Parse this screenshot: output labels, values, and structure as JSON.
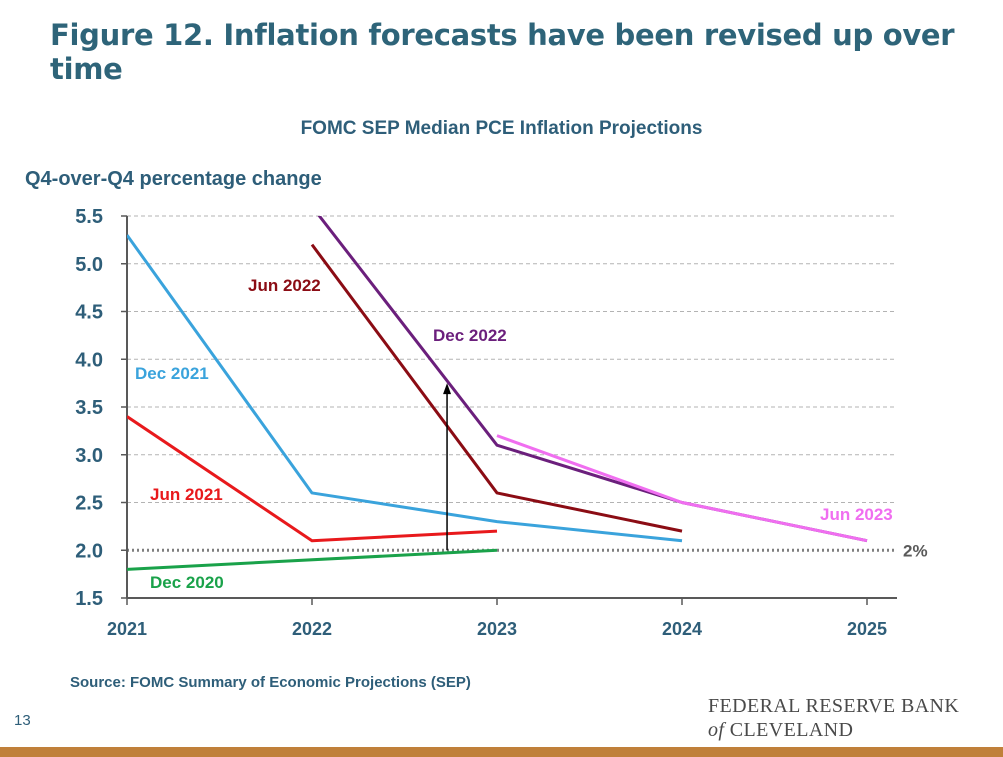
{
  "slide_title": "Figure 12. Inflation forecasts have been revised up over time",
  "source": "Source: FOMC Summary of Economic Projections (SEP)",
  "page_number": "13",
  "logo": {
    "line1": "FEDERAL RESERVE BANK",
    "of": "of",
    "line2": "CLEVELAND"
  },
  "chart_data": {
    "type": "line",
    "title": "FOMC SEP Median PCE Inflation Projections",
    "ylabel": "Q4-over-Q4 percentage change",
    "xlabel": "",
    "x": [
      2021,
      2022,
      2023,
      2024,
      2025
    ],
    "x_tick_labels": [
      "2021",
      "2022",
      "2023",
      "2024",
      "2025"
    ],
    "ylim": [
      1.5,
      5.5
    ],
    "y_ticks": [
      "1.5",
      "2.0",
      "2.5",
      "3.0",
      "3.5",
      "4.0",
      "4.5",
      "5.0",
      "5.5"
    ],
    "grid": "horizontal dashed",
    "reference_line": {
      "value": 2.0,
      "label": "2%",
      "color": "#7f7f7f"
    },
    "arrow": {
      "x": 2022.73,
      "from": 2.0,
      "to": 3.75
    },
    "series": [
      {
        "name": "Dec 2020",
        "color": "#1aa24a",
        "x": [
          2021,
          2023
        ],
        "y": [
          1.8,
          2.0
        ]
      },
      {
        "name": "Jun 2021",
        "color": "#e8191c",
        "x": [
          2021,
          2022,
          2023
        ],
        "y": [
          3.4,
          2.1,
          2.2
        ]
      },
      {
        "name": "Dec 2021",
        "color": "#3aa3dc",
        "x": [
          2021,
          2022,
          2023,
          2024
        ],
        "y": [
          5.3,
          2.6,
          2.3,
          2.1
        ]
      },
      {
        "name": "Jun 2022",
        "color": "#8b0c14",
        "x": [
          2022,
          2023,
          2024
        ],
        "y": [
          5.2,
          2.6,
          2.2
        ]
      },
      {
        "name": "Dec 2022",
        "color": "#6b1f7c",
        "x": [
          2022,
          2023,
          2024,
          2025
        ],
        "y": [
          5.6,
          3.1,
          2.5,
          2.1
        ]
      },
      {
        "name": "Jun 2023",
        "color": "#f06ef0",
        "x": [
          2023,
          2024,
          2025
        ],
        "y": [
          3.2,
          2.5,
          2.1
        ]
      }
    ]
  }
}
